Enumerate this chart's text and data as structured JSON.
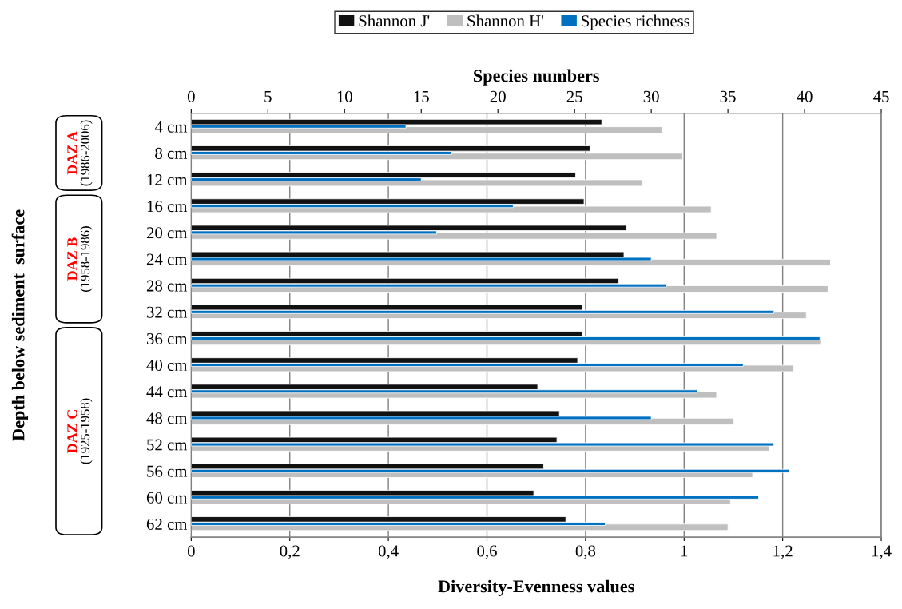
{
  "chart_data": {
    "type": "bar",
    "orientation": "horizontal",
    "categories": [
      "4 cm",
      "8 cm",
      "12 cm",
      "16 cm",
      "20 cm",
      "24 cm",
      "28 cm",
      "32 cm",
      "36 cm",
      "40 cm",
      "44 cm",
      "48 cm",
      "52 cm",
      "56 cm",
      "60 cm",
      "62 cm"
    ],
    "series": [
      {
        "name": "Shannon J'",
        "color": "#111111",
        "values": [
          0.833,
          0.809,
          0.78,
          0.797,
          0.883,
          0.878,
          0.867,
          0.793,
          0.793,
          0.784,
          0.703,
          0.747,
          0.742,
          0.715,
          0.695,
          0.76
        ]
      },
      {
        "name": "Shannon H'",
        "color": "#bfbfbf",
        "values": [
          0.955,
          0.997,
          0.916,
          1.055,
          1.066,
          1.297,
          1.292,
          1.248,
          1.277,
          1.222,
          1.066,
          1.101,
          1.173,
          1.139,
          1.094,
          1.089
        ]
      },
      {
        "name": "Species richness",
        "color": "#0070c0",
        "axis": "x2",
        "values": [
          14,
          17,
          15,
          21,
          16,
          30,
          31,
          38,
          41,
          36,
          33,
          30,
          38,
          39,
          37,
          27
        ]
      }
    ],
    "xlabel": "Diversity-Evenness values",
    "x2label": "Species numbers",
    "xlim": [
      0,
      1.4
    ],
    "xticks": [
      0,
      {
        "value": 0.2,
        "label": "0,2"
      },
      {
        "value": 0.4,
        "label": "0,4"
      },
      {
        "value": 0.6,
        "label": "0,6"
      },
      {
        "value": 0.8,
        "label": "0,8"
      },
      1,
      {
        "value": 1.2,
        "label": "1,2"
      },
      {
        "value": 1.4,
        "label": "1,4"
      }
    ],
    "x2lim": [
      0,
      45
    ],
    "x2ticks": [
      0,
      5,
      10,
      15,
      20,
      25,
      30,
      35,
      40,
      45
    ],
    "annotations": [
      "Depth below sediment  surface",
      "DAZ A\n(1986-2006)",
      "DAZ B\n(1958-1986)",
      "DAZ C\n(1925-1958)"
    ],
    "grid": "x",
    "legend": "top"
  }
}
